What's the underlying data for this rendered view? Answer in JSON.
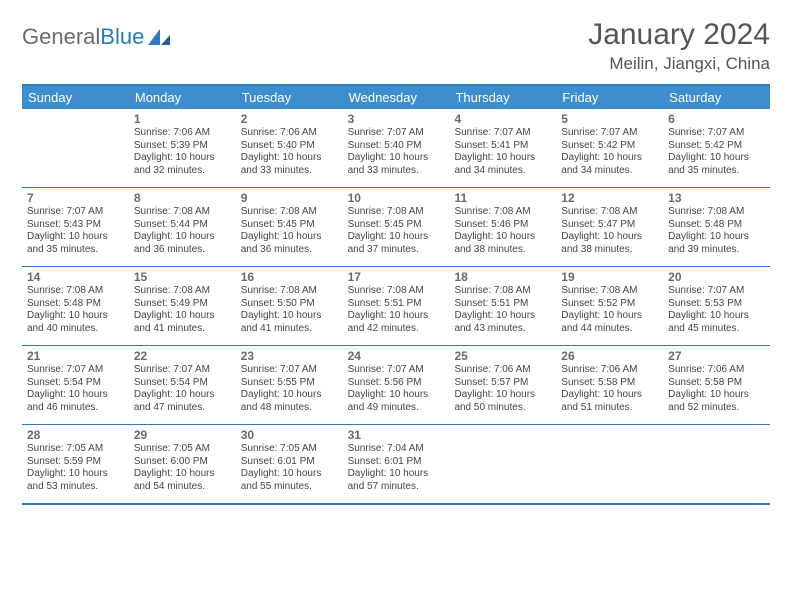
{
  "logo": {
    "part1": "General",
    "part2": "Blue"
  },
  "title": "January 2024",
  "location": "Meilin, Jiangxi, China",
  "header_bg": "#3e8ecf",
  "border_color": "#2a7bbf",
  "weekdays": [
    "Sunday",
    "Monday",
    "Tuesday",
    "Wednesday",
    "Thursday",
    "Friday",
    "Saturday"
  ],
  "labels": {
    "sunrise_prefix": "Sunrise: ",
    "sunset_prefix": "Sunset: ",
    "daylight_prefix": "Daylight: ",
    "daylight_unit1": " hours",
    "daylight_unit2": " minutes."
  },
  "weeks": [
    [
      null,
      {
        "n": "1",
        "sr": "7:06 AM",
        "ss": "5:39 PM",
        "dh": "10",
        "dm": "32"
      },
      {
        "n": "2",
        "sr": "7:06 AM",
        "ss": "5:40 PM",
        "dh": "10",
        "dm": "33"
      },
      {
        "n": "3",
        "sr": "7:07 AM",
        "ss": "5:40 PM",
        "dh": "10",
        "dm": "33"
      },
      {
        "n": "4",
        "sr": "7:07 AM",
        "ss": "5:41 PM",
        "dh": "10",
        "dm": "34"
      },
      {
        "n": "5",
        "sr": "7:07 AM",
        "ss": "5:42 PM",
        "dh": "10",
        "dm": "34"
      },
      {
        "n": "6",
        "sr": "7:07 AM",
        "ss": "5:42 PM",
        "dh": "10",
        "dm": "35"
      }
    ],
    [
      {
        "n": "7",
        "sr": "7:07 AM",
        "ss": "5:43 PM",
        "dh": "10",
        "dm": "35"
      },
      {
        "n": "8",
        "sr": "7:08 AM",
        "ss": "5:44 PM",
        "dh": "10",
        "dm": "36"
      },
      {
        "n": "9",
        "sr": "7:08 AM",
        "ss": "5:45 PM",
        "dh": "10",
        "dm": "36"
      },
      {
        "n": "10",
        "sr": "7:08 AM",
        "ss": "5:45 PM",
        "dh": "10",
        "dm": "37"
      },
      {
        "n": "11",
        "sr": "7:08 AM",
        "ss": "5:46 PM",
        "dh": "10",
        "dm": "38"
      },
      {
        "n": "12",
        "sr": "7:08 AM",
        "ss": "5:47 PM",
        "dh": "10",
        "dm": "38"
      },
      {
        "n": "13",
        "sr": "7:08 AM",
        "ss": "5:48 PM",
        "dh": "10",
        "dm": "39"
      }
    ],
    [
      {
        "n": "14",
        "sr": "7:08 AM",
        "ss": "5:48 PM",
        "dh": "10",
        "dm": "40"
      },
      {
        "n": "15",
        "sr": "7:08 AM",
        "ss": "5:49 PM",
        "dh": "10",
        "dm": "41"
      },
      {
        "n": "16",
        "sr": "7:08 AM",
        "ss": "5:50 PM",
        "dh": "10",
        "dm": "41"
      },
      {
        "n": "17",
        "sr": "7:08 AM",
        "ss": "5:51 PM",
        "dh": "10",
        "dm": "42"
      },
      {
        "n": "18",
        "sr": "7:08 AM",
        "ss": "5:51 PM",
        "dh": "10",
        "dm": "43"
      },
      {
        "n": "19",
        "sr": "7:08 AM",
        "ss": "5:52 PM",
        "dh": "10",
        "dm": "44"
      },
      {
        "n": "20",
        "sr": "7:07 AM",
        "ss": "5:53 PM",
        "dh": "10",
        "dm": "45"
      }
    ],
    [
      {
        "n": "21",
        "sr": "7:07 AM",
        "ss": "5:54 PM",
        "dh": "10",
        "dm": "46"
      },
      {
        "n": "22",
        "sr": "7:07 AM",
        "ss": "5:54 PM",
        "dh": "10",
        "dm": "47"
      },
      {
        "n": "23",
        "sr": "7:07 AM",
        "ss": "5:55 PM",
        "dh": "10",
        "dm": "48"
      },
      {
        "n": "24",
        "sr": "7:07 AM",
        "ss": "5:56 PM",
        "dh": "10",
        "dm": "49"
      },
      {
        "n": "25",
        "sr": "7:06 AM",
        "ss": "5:57 PM",
        "dh": "10",
        "dm": "50"
      },
      {
        "n": "26",
        "sr": "7:06 AM",
        "ss": "5:58 PM",
        "dh": "10",
        "dm": "51"
      },
      {
        "n": "27",
        "sr": "7:06 AM",
        "ss": "5:58 PM",
        "dh": "10",
        "dm": "52"
      }
    ],
    [
      {
        "n": "28",
        "sr": "7:05 AM",
        "ss": "5:59 PM",
        "dh": "10",
        "dm": "53"
      },
      {
        "n": "29",
        "sr": "7:05 AM",
        "ss": "6:00 PM",
        "dh": "10",
        "dm": "54"
      },
      {
        "n": "30",
        "sr": "7:05 AM",
        "ss": "6:01 PM",
        "dh": "10",
        "dm": "55"
      },
      {
        "n": "31",
        "sr": "7:04 AM",
        "ss": "6:01 PM",
        "dh": "10",
        "dm": "57"
      },
      null,
      null,
      null
    ]
  ]
}
